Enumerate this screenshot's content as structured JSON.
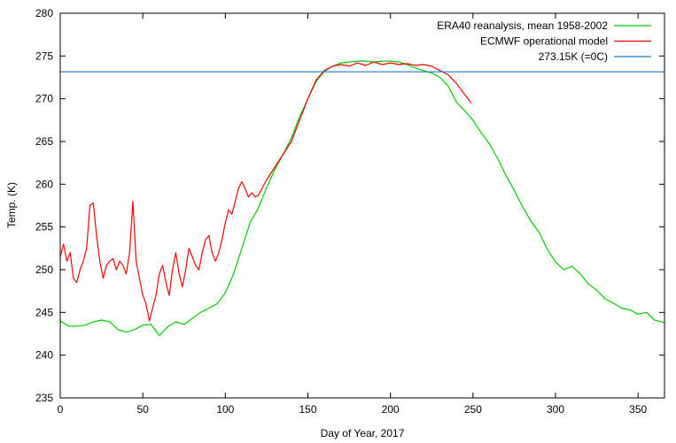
{
  "chart_data": {
    "type": "line",
    "title": "",
    "xlabel": "Day of Year, 2017",
    "ylabel": "Temp. (K)",
    "xlim": [
      0,
      366
    ],
    "ylim": [
      235,
      280
    ],
    "xticks": [
      0,
      50,
      100,
      150,
      200,
      250,
      300,
      350
    ],
    "yticks": [
      235,
      240,
      245,
      250,
      255,
      260,
      265,
      270,
      275,
      280
    ],
    "grid": false,
    "legend_position": "top-right",
    "series": [
      {
        "name": "ERA40 reanalysis, mean 1958-2002",
        "color": "#00cc00",
        "x": [
          0,
          5,
          10,
          15,
          20,
          25,
          30,
          35,
          40,
          45,
          50,
          55,
          60,
          65,
          70,
          75,
          80,
          85,
          90,
          95,
          100,
          105,
          110,
          115,
          120,
          125,
          130,
          135,
          140,
          145,
          150,
          155,
          160,
          165,
          170,
          175,
          180,
          185,
          190,
          195,
          200,
          205,
          210,
          215,
          220,
          225,
          230,
          235,
          240,
          245,
          250,
          255,
          260,
          265,
          270,
          275,
          280,
          285,
          290,
          295,
          300,
          305,
          310,
          315,
          320,
          325,
          330,
          335,
          340,
          345,
          350,
          355,
          360,
          366
        ],
        "y": [
          244.0,
          243.4,
          243.4,
          243.5,
          243.9,
          244.1,
          243.9,
          243.0,
          242.7,
          243.0,
          243.5,
          243.6,
          242.3,
          243.3,
          243.9,
          243.6,
          244.3,
          245.0,
          245.5,
          246.0,
          247.3,
          249.5,
          252.5,
          255.5,
          257.2,
          259.6,
          261.7,
          263.5,
          265.4,
          267.9,
          270.0,
          272.0,
          273.2,
          273.8,
          274.2,
          274.3,
          274.4,
          274.4,
          274.3,
          274.4,
          274.4,
          274.3,
          274.0,
          273.6,
          273.3,
          273.0,
          272.5,
          271.5,
          269.6,
          268.6,
          267.5,
          266.0,
          264.7,
          263.0,
          261.0,
          259.3,
          257.4,
          255.7,
          254.4,
          252.4,
          250.9,
          250.0,
          250.4,
          249.5,
          248.3,
          247.6,
          246.6,
          246.1,
          245.5,
          245.3,
          244.8,
          245.0,
          244.1,
          243.8
        ]
      },
      {
        "name": "ECMWF operational model",
        "color": "#ff0000",
        "x": [
          0,
          2,
          4,
          6,
          8,
          10,
          12,
          14,
          16,
          18,
          20,
          22,
          24,
          26,
          28,
          30,
          32,
          34,
          36,
          38,
          40,
          42,
          44,
          46,
          48,
          50,
          52,
          54,
          56,
          58,
          60,
          62,
          64,
          66,
          68,
          70,
          72,
          74,
          76,
          78,
          80,
          82,
          84,
          86,
          88,
          90,
          92,
          94,
          96,
          98,
          100,
          102,
          104,
          106,
          108,
          110,
          112,
          114,
          116,
          118,
          120,
          125,
          130,
          135,
          140,
          145,
          150,
          155,
          160,
          165,
          170,
          175,
          180,
          185,
          190,
          195,
          200,
          205,
          210,
          215,
          220,
          225,
          230,
          235,
          240,
          245,
          249
        ],
        "y": [
          251.5,
          253.0,
          251.0,
          252.0,
          249.0,
          248.5,
          250.0,
          251.0,
          252.5,
          257.5,
          257.8,
          254.0,
          251.0,
          249.0,
          250.5,
          251.0,
          251.3,
          250.0,
          251.0,
          250.5,
          249.5,
          252.0,
          258.0,
          251.0,
          249.0,
          247.0,
          246.0,
          244.0,
          245.5,
          247.0,
          249.5,
          250.5,
          248.5,
          247.0,
          250.0,
          252.0,
          249.5,
          248.0,
          250.0,
          252.5,
          251.5,
          250.5,
          250.0,
          252.0,
          253.5,
          254.0,
          252.0,
          251.0,
          252.0,
          253.5,
          255.5,
          257.0,
          256.5,
          258.0,
          259.5,
          260.3,
          259.5,
          258.5,
          259.0,
          258.5,
          258.7,
          260.5,
          262.0,
          263.5,
          265.0,
          267.5,
          270.0,
          272.2,
          273.3,
          273.8,
          274.0,
          273.8,
          274.2,
          273.9,
          274.3,
          274.0,
          274.2,
          274.0,
          274.1,
          273.9,
          274.0,
          273.8,
          273.3,
          272.8,
          271.8,
          270.5,
          269.5
        ]
      },
      {
        "name": "273.15K (=0C)",
        "color": "#1f78c8",
        "x": [
          0,
          366
        ],
        "y": [
          273.15,
          273.15
        ]
      }
    ]
  }
}
